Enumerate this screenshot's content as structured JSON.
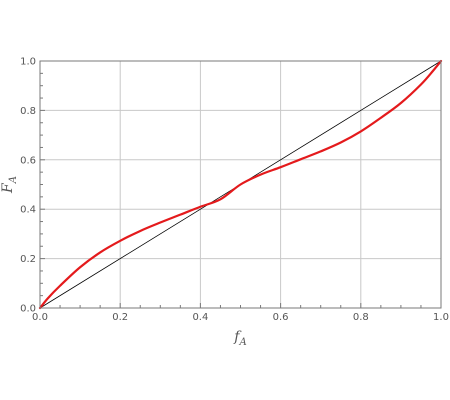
{
  "chart_data": {
    "type": "line",
    "title": "",
    "xlabel": {
      "main": "f",
      "sub": "A"
    },
    "ylabel": {
      "main": "F",
      "sub": "A"
    },
    "xlim": [
      0,
      1
    ],
    "ylim": [
      0,
      1
    ],
    "grid": true,
    "x_ticks": [
      "0.0",
      "0.2",
      "0.4",
      "0.6",
      "0.8",
      "1.0"
    ],
    "y_ticks": [
      "0.0",
      "0.2",
      "0.4",
      "0.6",
      "0.8",
      "1.0"
    ],
    "series": [
      {
        "color": "#000000",
        "x": [
          0,
          1
        ],
        "y": [
          0,
          1
        ]
      },
      {
        "color": "#e41a1c",
        "x": [
          0,
          0.02,
          0.05,
          0.1,
          0.15,
          0.2,
          0.25,
          0.3,
          0.35,
          0.4,
          0.45,
          0.5,
          0.55,
          0.6,
          0.65,
          0.7,
          0.75,
          0.8,
          0.85,
          0.9,
          0.95,
          0.98,
          1.0
        ],
        "y": [
          0,
          0.04,
          0.09,
          0.165,
          0.225,
          0.272,
          0.312,
          0.346,
          0.378,
          0.41,
          0.44,
          0.5,
          0.54,
          0.57,
          0.602,
          0.634,
          0.67,
          0.715,
          0.77,
          0.83,
          0.905,
          0.96,
          1.0
        ]
      }
    ]
  }
}
